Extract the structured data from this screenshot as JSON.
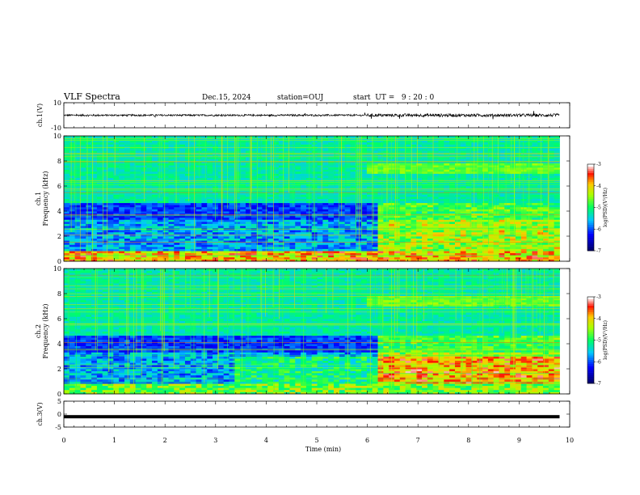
{
  "header": {
    "title": "VLF Spectra",
    "date": "Dec.15, 2024",
    "station": "station=OUJ",
    "start": "start  UT =   9 : 20 : 0"
  },
  "chart_data": [
    {
      "type": "line",
      "panel": "ch1-waveform",
      "ylabel": "ch.1(V)",
      "ylim": [
        -10,
        10
      ],
      "yticks": [
        "10",
        "-10"
      ],
      "xlim": [
        0,
        10
      ],
      "description_values": {
        "baseline": 0,
        "typical_amplitude": 1
      }
    },
    {
      "type": "heatmap",
      "panel": "ch1-spectrogram",
      "ylabel": "ch.1\nFrequency (kHz)",
      "ylim": [
        0,
        10
      ],
      "yticks": [
        "0",
        "2",
        "4",
        "6",
        "8",
        "10"
      ],
      "xlim": [
        0,
        10
      ],
      "colorbar": {
        "label": "log(PSD)(V²/Hz)",
        "range": [
          -7,
          -3
        ],
        "ticks": [
          "-3",
          "-4",
          "-5",
          "-6",
          "-7"
        ]
      }
    },
    {
      "type": "heatmap",
      "panel": "ch2-spectrogram",
      "ylabel": "ch.2\nFrequency (kHz)",
      "ylim": [
        0,
        10
      ],
      "yticks": [
        "0",
        "2",
        "4",
        "6",
        "8",
        "10"
      ],
      "xlim": [
        0,
        10
      ],
      "colorbar": {
        "label": "log(PSD)(V²/Hz)",
        "range": [
          -7,
          -3
        ],
        "ticks": [
          "-3",
          "-4",
          "-5",
          "-6",
          "-7"
        ]
      }
    },
    {
      "type": "line",
      "panel": "ch3-waveform",
      "ylabel": "ch.3(V)",
      "ylim": [
        -5,
        5
      ],
      "yticks": [
        "5",
        "0",
        "-5"
      ],
      "xlim": [
        0,
        10
      ],
      "description_values": {
        "baseline": -1
      }
    }
  ],
  "xaxis": {
    "label": "Time (min)",
    "ticks": [
      "0",
      "1",
      "2",
      "3",
      "4",
      "5",
      "6",
      "7",
      "8",
      "9",
      "10"
    ]
  },
  "colors": {
    "low": "#000080",
    "mid": "#00c8ff",
    "green": "#00ff40",
    "high": "#ff2000",
    "max": "#ffffff"
  }
}
